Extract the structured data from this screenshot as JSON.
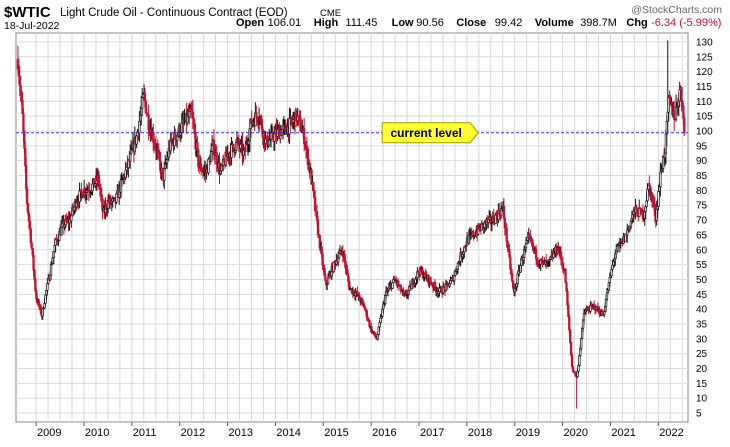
{
  "header": {
    "symbol": "$WTIC",
    "name": "Light Crude Oil - Continuous Contract (EOD)",
    "exchange": "CME",
    "date": "18-Jul-2022",
    "watermark": "@StockCharts.com",
    "stats": [
      {
        "label": "Open",
        "value": "106.01"
      },
      {
        "label": "High",
        "value": "111.45"
      },
      {
        "label": "Low",
        "value": "90.56"
      },
      {
        "label": "Close",
        "value": "99.42"
      },
      {
        "label": "Volume",
        "value": "398.7M"
      },
      {
        "label": "Chg",
        "value": "-6.34 (-5.99%)"
      }
    ],
    "chg_color": "#c8102e"
  },
  "colors": {
    "up": "#111111",
    "down": "#c8102e",
    "grid": "#d9d9d9",
    "reference_line": "#2b2bd6",
    "callout_fill": "#ffff33",
    "callout_stroke": "#999900"
  },
  "chart_data": {
    "type": "ohlc",
    "title": "$WTIC Light Crude Oil - Continuous Contract (EOD)",
    "xlabel": "",
    "ylabel": "",
    "x_tick_labels": [
      "2009",
      "2010",
      "2011",
      "2012",
      "2013",
      "2014",
      "2015",
      "2016",
      "2017",
      "2018",
      "2019",
      "2020",
      "2021",
      "2022"
    ],
    "y_tick_labels": [
      5,
      10,
      15,
      20,
      25,
      30,
      35,
      40,
      45,
      50,
      55,
      60,
      65,
      70,
      75,
      80,
      85,
      90,
      95,
      100,
      105,
      110,
      115,
      120,
      125,
      130
    ],
    "ylim": [
      2,
      133
    ],
    "xlim": [
      2008.58,
      2022.62
    ],
    "grid": true,
    "y_axis_side": "right",
    "annotations": [
      {
        "type": "horizontal_line",
        "value": 99.42,
        "style": "dashed"
      },
      {
        "type": "callout",
        "text": "current level",
        "value": 99.42,
        "x": 2017.15
      }
    ],
    "price_path": [
      [
        2008.62,
        124
      ],
      [
        2008.72,
        104
      ],
      [
        2008.8,
        78
      ],
      [
        2008.9,
        62
      ],
      [
        2009.0,
        44
      ],
      [
        2009.12,
        38
      ],
      [
        2009.25,
        49
      ],
      [
        2009.4,
        62
      ],
      [
        2009.55,
        68
      ],
      [
        2009.7,
        70
      ],
      [
        2009.85,
        77
      ],
      [
        2010.0,
        80
      ],
      [
        2010.15,
        81
      ],
      [
        2010.3,
        84
      ],
      [
        2010.4,
        72
      ],
      [
        2010.5,
        76
      ],
      [
        2010.65,
        76
      ],
      [
        2010.8,
        83
      ],
      [
        2010.95,
        90
      ],
      [
        2011.1,
        98
      ],
      [
        2011.25,
        112
      ],
      [
        2011.35,
        103
      ],
      [
        2011.5,
        95
      ],
      [
        2011.65,
        84
      ],
      [
        2011.8,
        95
      ],
      [
        2011.95,
        99
      ],
      [
        2012.1,
        103
      ],
      [
        2012.25,
        106
      ],
      [
        2012.4,
        88
      ],
      [
        2012.55,
        86
      ],
      [
        2012.7,
        95
      ],
      [
        2012.85,
        86
      ],
      [
        2013.0,
        92
      ],
      [
        2013.2,
        96
      ],
      [
        2013.35,
        92
      ],
      [
        2013.5,
        103
      ],
      [
        2013.65,
        106
      ],
      [
        2013.8,
        96
      ],
      [
        2013.95,
        98
      ],
      [
        2014.1,
        100
      ],
      [
        2014.25,
        101
      ],
      [
        2014.45,
        105
      ],
      [
        2014.6,
        98
      ],
      [
        2014.75,
        84
      ],
      [
        2014.9,
        65
      ],
      [
        2015.05,
        48
      ],
      [
        2015.25,
        56
      ],
      [
        2015.4,
        60
      ],
      [
        2015.55,
        47
      ],
      [
        2015.7,
        45
      ],
      [
        2015.85,
        41
      ],
      [
        2016.0,
        33
      ],
      [
        2016.12,
        30
      ],
      [
        2016.3,
        45
      ],
      [
        2016.5,
        50
      ],
      [
        2016.7,
        44
      ],
      [
        2016.85,
        48
      ],
      [
        2017.0,
        53
      ],
      [
        2017.2,
        50
      ],
      [
        2017.4,
        46
      ],
      [
        2017.55,
        47
      ],
      [
        2017.7,
        50
      ],
      [
        2017.85,
        57
      ],
      [
        2018.0,
        63
      ],
      [
        2018.2,
        66
      ],
      [
        2018.4,
        69
      ],
      [
        2018.55,
        70
      ],
      [
        2018.75,
        74
      ],
      [
        2018.9,
        55
      ],
      [
        2018.98,
        45
      ],
      [
        2019.15,
        57
      ],
      [
        2019.3,
        64
      ],
      [
        2019.5,
        56
      ],
      [
        2019.7,
        55
      ],
      [
        2019.9,
        61
      ],
      [
        2020.05,
        52
      ],
      [
        2020.2,
        20
      ],
      [
        2020.3,
        17
      ],
      [
        2020.45,
        39
      ],
      [
        2020.65,
        41
      ],
      [
        2020.85,
        38
      ],
      [
        2020.95,
        47
      ],
      [
        2021.1,
        59
      ],
      [
        2021.3,
        64
      ],
      [
        2021.5,
        73
      ],
      [
        2021.7,
        72
      ],
      [
        2021.8,
        82
      ],
      [
        2021.95,
        71
      ],
      [
        2022.05,
        86
      ],
      [
        2022.15,
        95
      ],
      [
        2022.22,
        110
      ],
      [
        2022.35,
        105
      ],
      [
        2022.45,
        114
      ],
      [
        2022.52,
        108
      ],
      [
        2022.55,
        99.42
      ]
    ],
    "max_high": 130.5,
    "min_low": 6.5
  }
}
